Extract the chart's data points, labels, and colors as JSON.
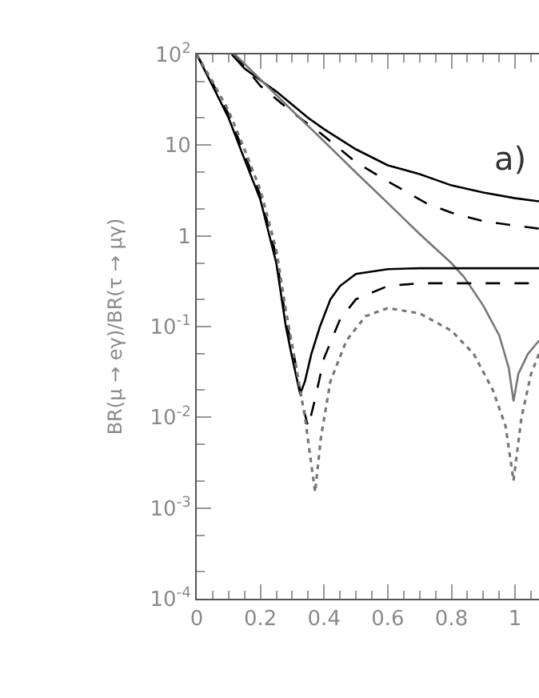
{
  "chart_data": {
    "type": "line",
    "ylabel": "BR(μ → eγ)/BR(τ → μγ)",
    "log": "y",
    "marker": "none",
    "xlim": [
      0,
      1.075
    ],
    "xticks": [
      0,
      0.2,
      0.4,
      0.6,
      0.8,
      1
    ],
    "ylim": [
      0.0001,
      100
    ],
    "yticks": [
      {
        "value": 0.0001,
        "label": "10$^{-4}$"
      },
      {
        "value": 0.001,
        "label": "10$^{-3}$"
      },
      {
        "value": 0.01,
        "label": "10$^{-2}$"
      },
      {
        "value": 0.1,
        "label": "10$^{-1}$"
      },
      1,
      10,
      {
        "value": 100,
        "label": "10$^{2}$"
      }
    ],
    "annotations": [
      "a)"
    ],
    "series": [
      {
        "color": "#000000",
        "line_style": "solid",
        "x": [
          0.11,
          0.15,
          0.2,
          0.25,
          0.3,
          0.35,
          0.4,
          0.5,
          0.6,
          0.7,
          0.8,
          0.9,
          1.0,
          1.075
        ],
        "values": [
          100,
          70,
          52,
          39,
          28,
          20,
          15,
          9,
          6,
          4.8,
          3.6,
          3,
          2.6,
          2.4
        ]
      },
      {
        "color": "#000000",
        "line_style": "dashed",
        "x": [
          0.12,
          0.2,
          0.3,
          0.387,
          0.5,
          0.6,
          0.72,
          0.8,
          0.9,
          1.0,
          1.075
        ],
        "values": [
          100,
          45,
          23,
          13.7,
          6.5,
          4,
          2.3,
          1.8,
          1.45,
          1.3,
          1.2
        ]
      },
      {
        "color": "#777777",
        "line_style": "solid",
        "x": [
          0.12,
          0.2,
          0.3,
          0.4,
          0.5,
          0.6,
          0.7,
          0.8,
          0.84,
          0.9,
          0.95,
          0.98,
          0.995,
          1.01,
          1.04,
          1.075
        ],
        "values": [
          100,
          53,
          24,
          11,
          5,
          2.3,
          1.05,
          0.5,
          0.35,
          0.17,
          0.08,
          0.035,
          0.015,
          0.03,
          0.05,
          0.07
        ]
      },
      {
        "color": "#000000",
        "line_style": "solid",
        "x": [
          0,
          0.05,
          0.1,
          0.15,
          0.2,
          0.25,
          0.28,
          0.3,
          0.325,
          0.34,
          0.36,
          0.387,
          0.42,
          0.45,
          0.5,
          0.6,
          0.7,
          0.8,
          0.9,
          1.0,
          1.075
        ],
        "values": [
          100,
          45,
          20,
          7,
          2.5,
          0.5,
          0.1,
          0.045,
          0.018,
          0.025,
          0.05,
          0.1,
          0.2,
          0.28,
          0.38,
          0.43,
          0.44,
          0.44,
          0.44,
          0.44,
          0.44
        ]
      },
      {
        "color": "#000000",
        "line_style": "dashed",
        "x": [
          0,
          0.05,
          0.1,
          0.15,
          0.2,
          0.25,
          0.28,
          0.31,
          0.33,
          0.35,
          0.37,
          0.4,
          0.45,
          0.5,
          0.6,
          0.7,
          0.8,
          1.0,
          1.075
        ],
        "values": [
          100,
          48,
          22,
          8,
          2.8,
          0.6,
          0.12,
          0.04,
          0.015,
          0.0078,
          0.015,
          0.045,
          0.12,
          0.2,
          0.28,
          0.3,
          0.3,
          0.3,
          0.3
        ]
      },
      {
        "color": "#777777",
        "line_style": "dotted",
        "x": [
          0,
          0.05,
          0.1,
          0.15,
          0.2,
          0.25,
          0.28,
          0.31,
          0.34,
          0.36,
          0.372,
          0.39,
          0.42,
          0.47,
          0.53,
          0.6,
          0.7,
          0.8,
          0.87,
          0.93,
          0.97,
          0.995,
          1.02,
          1.05,
          1.075
        ],
        "values": [
          100,
          50,
          24,
          9,
          3.2,
          0.7,
          0.15,
          0.04,
          0.01,
          0.003,
          0.0015,
          0.006,
          0.025,
          0.07,
          0.13,
          0.16,
          0.14,
          0.09,
          0.05,
          0.02,
          0.008,
          0.002,
          0.01,
          0.03,
          0.05
        ]
      }
    ]
  }
}
